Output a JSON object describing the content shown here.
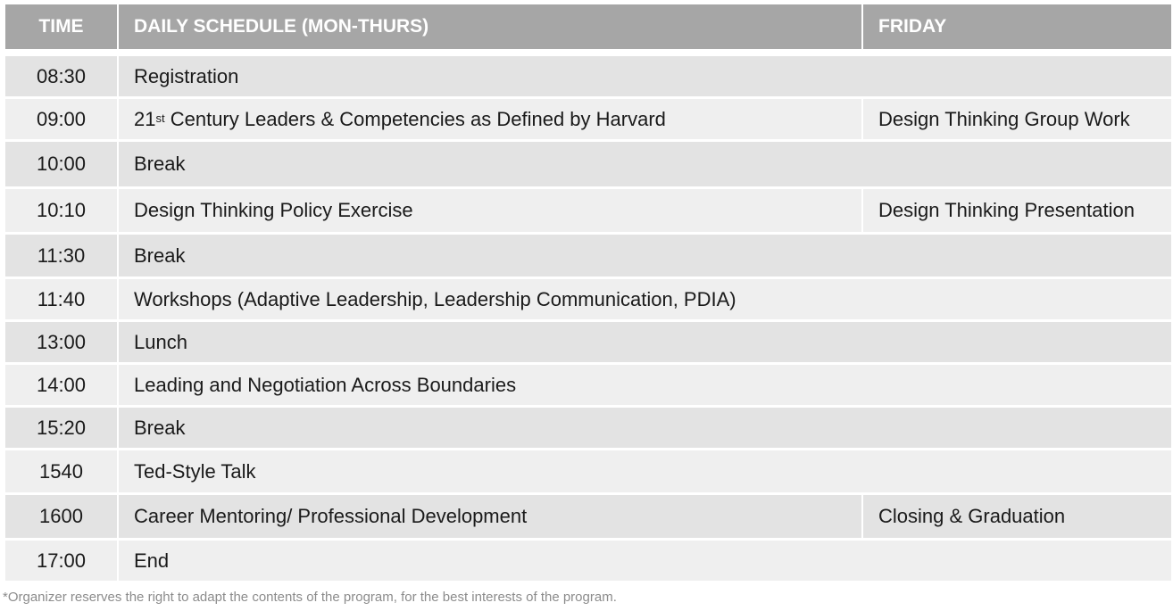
{
  "headers": {
    "time": "TIME",
    "daily": "DAILY SCHEDULE (MON-THURS)",
    "friday": "FRIDAY"
  },
  "rows": [
    {
      "time": "08:30",
      "activity": "Registration",
      "friday": ""
    },
    {
      "time": "09:00",
      "activity_prefix": "21",
      "activity_sup": "st",
      "activity": " Century Leaders & Competencies as Defined by Harvard",
      "friday": "Design Thinking Group Work"
    },
    {
      "time": "10:00",
      "activity": "Break",
      "friday": ""
    },
    {
      "time": "10:10",
      "activity": "Design Thinking Policy Exercise",
      "friday": "Design Thinking Presentation"
    },
    {
      "time": "11:30",
      "activity": "Break",
      "friday": ""
    },
    {
      "time": "11:40",
      "activity": "Workshops (Adaptive Leadership, Leadership Communication, PDIA)",
      "friday": ""
    },
    {
      "time": "13:00",
      "activity": "Lunch",
      "friday": ""
    },
    {
      "time": "14:00",
      "activity": "Leading and Negotiation Across Boundaries",
      "friday": ""
    },
    {
      "time": "15:20",
      "activity": "Break",
      "friday": ""
    },
    {
      "time": "1540",
      "activity": "Ted-Style Talk",
      "friday": ""
    },
    {
      "time": "1600",
      "activity": "Career Mentoring/ Professional Development",
      "friday": "Closing & Graduation"
    },
    {
      "time": "17:00",
      "activity": "End",
      "friday": ""
    }
  ],
  "footnote": "*Organizer reserves the right to adapt the contents of the program, for the best interests of the program."
}
